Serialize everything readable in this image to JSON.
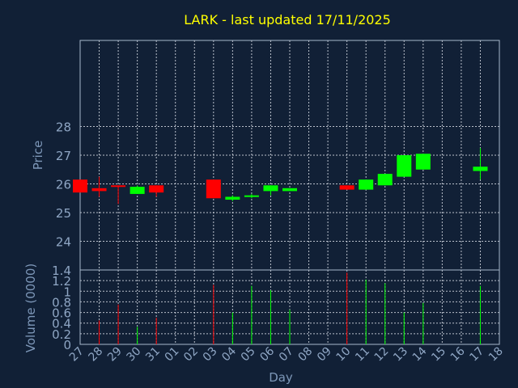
{
  "chart_data": [
    {
      "type": "candlestick",
      "title": "LARK - last updated 17/11/2025",
      "ylabel": "Price",
      "ylim": [
        23,
        31
      ],
      "yticks": [
        24,
        25,
        26,
        27,
        28
      ],
      "x_start": "27",
      "x_ticks": [
        "27",
        "28",
        "29",
        "30",
        "31",
        "01",
        "02",
        "03",
        "04",
        "05",
        "06",
        "07",
        "08",
        "09",
        "10",
        "11",
        "12",
        "13",
        "14",
        "15",
        "16",
        "17",
        "18"
      ],
      "grid": true,
      "colors": {
        "up": "#00ff00",
        "down": "#ff0000",
        "background": "#112036",
        "title": "#ffff00",
        "text": "#8fa6c4"
      },
      "candles": [
        {
          "day": "27",
          "open": 26.15,
          "high": 26.15,
          "low": 25.7,
          "close": 25.7
        },
        {
          "day": "28",
          "open": 25.85,
          "high": 26.25,
          "low": 25.55,
          "close": 25.75
        },
        {
          "day": "29",
          "open": 25.95,
          "high": 25.95,
          "low": 25.3,
          "close": 25.9
        },
        {
          "day": "30",
          "open": 25.65,
          "high": 25.95,
          "low": 25.65,
          "close": 25.9
        },
        {
          "day": "31",
          "open": 25.95,
          "high": 25.95,
          "low": 25.55,
          "close": 25.7
        },
        {
          "day": "03",
          "open": 26.15,
          "high": 26.15,
          "low": 25.5,
          "close": 25.5
        },
        {
          "day": "04",
          "open": 25.45,
          "high": 25.6,
          "low": 25.4,
          "close": 25.55
        },
        {
          "day": "05",
          "open": 25.55,
          "high": 25.65,
          "low": 25.5,
          "close": 25.6
        },
        {
          "day": "06",
          "open": 25.75,
          "high": 25.95,
          "low": 25.6,
          "close": 25.95
        },
        {
          "day": "07",
          "open": 25.75,
          "high": 25.85,
          "low": 25.75,
          "close": 25.85
        },
        {
          "day": "10",
          "open": 25.95,
          "high": 25.95,
          "low": 25.8,
          "close": 25.8
        },
        {
          "day": "11",
          "open": 25.8,
          "high": 26.15,
          "low": 25.8,
          "close": 26.15
        },
        {
          "day": "12",
          "open": 25.95,
          "high": 26.35,
          "low": 25.95,
          "close": 26.35
        },
        {
          "day": "13",
          "open": 26.25,
          "high": 27.0,
          "low": 26.25,
          "close": 27.0
        },
        {
          "day": "14",
          "open": 26.5,
          "high": 27.05,
          "low": 26.5,
          "close": 27.05
        },
        {
          "day": "17",
          "open": 26.45,
          "high": 27.25,
          "low": 26.15,
          "close": 26.6
        }
      ]
    },
    {
      "type": "bar",
      "ylabel": "Volume (0000)",
      "xlabel": "Day",
      "ylim": [
        0,
        1.4
      ],
      "yticks": [
        0,
        0.2,
        0.4,
        0.6,
        0.8,
        1,
        1.2,
        1.4
      ],
      "ytick_labels": [
        "0",
        "0.2",
        "0.4",
        "0.6",
        "0.8",
        "1",
        "1.2",
        "1.4"
      ],
      "grid": true,
      "volumes": [
        {
          "day": "28",
          "value": 0.45,
          "direction": "down"
        },
        {
          "day": "29",
          "value": 0.75,
          "direction": "down"
        },
        {
          "day": "30",
          "value": 0.33,
          "direction": "up"
        },
        {
          "day": "31",
          "value": 0.5,
          "direction": "down"
        },
        {
          "day": "03",
          "value": 1.12,
          "direction": "down"
        },
        {
          "day": "04",
          "value": 0.6,
          "direction": "up"
        },
        {
          "day": "05",
          "value": 1.1,
          "direction": "up"
        },
        {
          "day": "06",
          "value": 1.02,
          "direction": "up"
        },
        {
          "day": "07",
          "value": 0.65,
          "direction": "up"
        },
        {
          "day": "10",
          "value": 1.35,
          "direction": "down"
        },
        {
          "day": "11",
          "value": 1.22,
          "direction": "up"
        },
        {
          "day": "12",
          "value": 1.15,
          "direction": "up"
        },
        {
          "day": "13",
          "value": 0.6,
          "direction": "up"
        },
        {
          "day": "14",
          "value": 0.78,
          "direction": "up"
        },
        {
          "day": "17",
          "value": 1.1,
          "direction": "up"
        }
      ]
    }
  ]
}
